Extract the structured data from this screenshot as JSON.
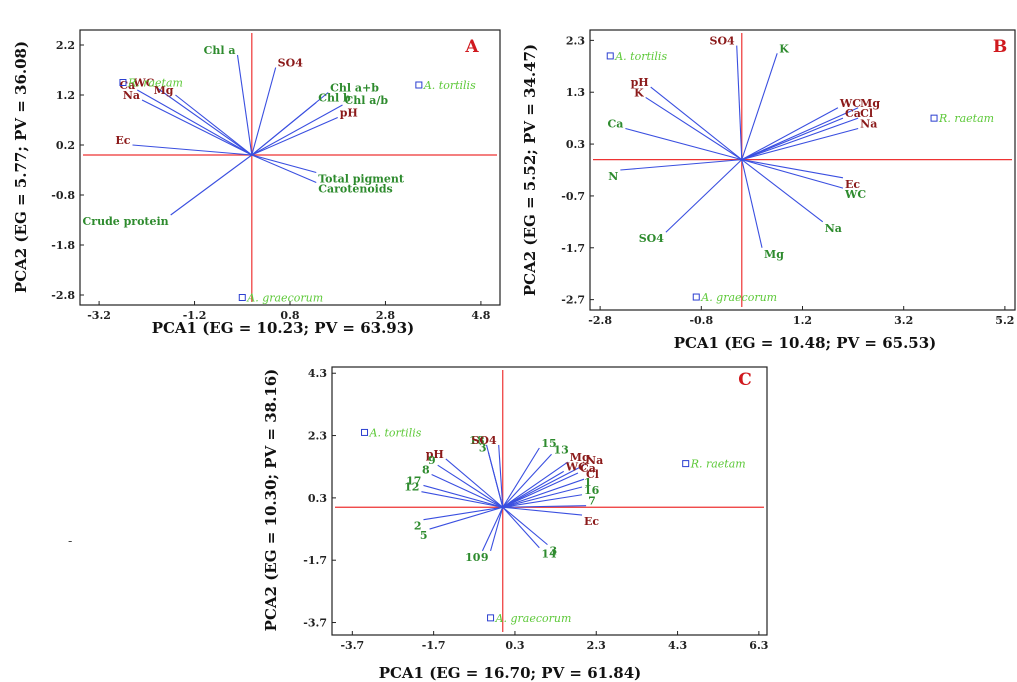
{
  "chart_data": [
    {
      "type": "scatter",
      "panel": "A",
      "xlabel": "PCA1 (EG = 10.23; PV = 63.93)",
      "ylabel": "PCA2 (EG = 5.77; PV = 36.08)",
      "xlim": [
        -3.6,
        5.2
      ],
      "ylim": [
        -3.0,
        2.5
      ],
      "xticks": [
        -3.2,
        -1.2,
        0.8,
        2.8,
        4.8
      ],
      "yticks": [
        2.2,
        1.2,
        0.2,
        -0.8,
        -1.8,
        -2.8
      ],
      "grid": false,
      "sites": [
        {
          "name": "R. raetam",
          "x": -2.7,
          "y": 1.45
        },
        {
          "name": "A. tortilis",
          "x": 3.5,
          "y": 1.4
        },
        {
          "name": "A. graecorum",
          "x": -0.2,
          "y": -2.85
        }
      ],
      "vectors": [
        {
          "label": "Chl a",
          "x": -0.3,
          "y": 2.0,
          "color": "#2e8b2e"
        },
        {
          "label": "SO4",
          "x": 0.5,
          "y": 1.75,
          "color": "#8b1a1a"
        },
        {
          "label": "Chl a+b",
          "x": 1.6,
          "y": 1.25,
          "color": "#2e8b2e"
        },
        {
          "label": "Chl b",
          "x": 1.35,
          "y": 1.05,
          "color": "#2e8b2e"
        },
        {
          "label": "Chl a/b",
          "x": 1.9,
          "y": 1.0,
          "color": "#2e8b2e"
        },
        {
          "label": "pH",
          "x": 1.8,
          "y": 0.75,
          "color": "#8b1a1a"
        },
        {
          "label": "Ca",
          "x": -2.4,
          "y": 1.3,
          "color": "#8b1a1a"
        },
        {
          "label": "WC",
          "x": -2.0,
          "y": 1.35,
          "color": "#8b1a1a"
        },
        {
          "label": "Mg",
          "x": -1.6,
          "y": 1.2,
          "color": "#8b1a1a"
        },
        {
          "label": "Na",
          "x": -2.3,
          "y": 1.1,
          "color": "#8b1a1a"
        },
        {
          "label": "Ec",
          "x": -2.5,
          "y": 0.2,
          "color": "#8b1a1a"
        },
        {
          "label": "Total pigment",
          "x": 1.35,
          "y": -0.35,
          "color": "#2e8b2e"
        },
        {
          "label": "Carotenoids",
          "x": 1.35,
          "y": -0.55,
          "color": "#2e8b2e"
        },
        {
          "label": "Crude protein",
          "x": -1.7,
          "y": -1.2,
          "color": "#2e8b2e"
        }
      ]
    },
    {
      "type": "scatter",
      "panel": "B",
      "xlabel": "PCA1 (EG = 10.48; PV = 65.53)",
      "ylabel": "PCA2 (EG = 5.52; PV = 34.47)",
      "xlim": [
        -3.0,
        5.4
      ],
      "ylim": [
        -2.9,
        2.5
      ],
      "xticks": [
        -2.8,
        -0.8,
        1.2,
        3.2,
        5.2
      ],
      "yticks": [
        2.3,
        1.3,
        0.3,
        -0.7,
        -1.7,
        -2.7
      ],
      "grid": false,
      "sites": [
        {
          "name": "A. tortilis",
          "x": -2.6,
          "y": 2.0
        },
        {
          "name": "R. raetam",
          "x": 3.8,
          "y": 0.8
        },
        {
          "name": "A. graecorum",
          "x": -0.9,
          "y": -2.65
        }
      ],
      "vectors": [
        {
          "label": "SO4",
          "x": -0.1,
          "y": 2.2,
          "color": "#8b1a1a"
        },
        {
          "label": "K",
          "x": 0.7,
          "y": 2.05,
          "color": "#2e8b2e"
        },
        {
          "label": "pH",
          "x": -1.8,
          "y": 1.4,
          "color": "#8b1a1a"
        },
        {
          "label": "K",
          "x": -1.9,
          "y": 1.2,
          "color": "#8b1a1a"
        },
        {
          "label": "WC",
          "x": 1.9,
          "y": 1.0,
          "color": "#8b1a1a"
        },
        {
          "label": "Mg",
          "x": 2.3,
          "y": 1.0,
          "color": "#8b1a1a"
        },
        {
          "label": "Ca",
          "x": 2.0,
          "y": 0.8,
          "color": "#8b1a1a"
        },
        {
          "label": "Cl",
          "x": 2.3,
          "y": 0.8,
          "color": "#8b1a1a"
        },
        {
          "label": "Na",
          "x": 2.3,
          "y": 0.6,
          "color": "#8b1a1a"
        },
        {
          "label": "Ca",
          "x": -2.3,
          "y": 0.6,
          "color": "#2e8b2e"
        },
        {
          "label": "N",
          "x": -2.4,
          "y": -0.2,
          "color": "#2e8b2e"
        },
        {
          "label": "Ec",
          "x": 2.0,
          "y": -0.35,
          "color": "#8b1a1a"
        },
        {
          "label": "WC",
          "x": 2.0,
          "y": -0.55,
          "color": "#2e8b2e"
        },
        {
          "label": "Na",
          "x": 1.6,
          "y": -1.2,
          "color": "#2e8b2e"
        },
        {
          "label": "SO4",
          "x": -1.5,
          "y": -1.4,
          "color": "#2e8b2e"
        },
        {
          "label": "Mg",
          "x": 0.4,
          "y": -1.7,
          "color": "#2e8b2e"
        }
      ]
    },
    {
      "type": "scatter",
      "panel": "C",
      "xlabel": "PCA1 (EG = 16.70; PV = 61.84)",
      "ylabel": "PCA2 (EG = 10.30; PV = 38.16)",
      "xlim": [
        -4.2,
        6.5
      ],
      "ylim": [
        -4.1,
        4.5
      ],
      "xticks": [
        -3.7,
        -1.7,
        0.3,
        2.3,
        4.3,
        6.3
      ],
      "yticks": [
        4.3,
        2.3,
        0.3,
        -1.7,
        -3.7
      ],
      "grid": false,
      "sites": [
        {
          "name": "A. tortilis",
          "x": -3.4,
          "y": 2.4
        },
        {
          "name": "R. raetam",
          "x": 4.5,
          "y": 1.4
        },
        {
          "name": "A. graecorum",
          "x": -0.3,
          "y": -3.55
        }
      ],
      "vectors": [
        {
          "label": "18",
          "x": -0.4,
          "y": 2.0,
          "color": "#2e8b2e"
        },
        {
          "label": "SO4",
          "x": -0.1,
          "y": 2.0,
          "color": "#8b1a1a"
        },
        {
          "label": "3",
          "x": -0.35,
          "y": 1.75,
          "color": "#2e8b2e"
        },
        {
          "label": "pH",
          "x": -1.4,
          "y": 1.55,
          "color": "#8b1a1a"
        },
        {
          "label": "9",
          "x": -1.6,
          "y": 1.35,
          "color": "#2e8b2e"
        },
        {
          "label": "8",
          "x": -1.75,
          "y": 1.05,
          "color": "#2e8b2e"
        },
        {
          "label": "17",
          "x": -1.95,
          "y": 0.7,
          "color": "#2e8b2e"
        },
        {
          "label": "12",
          "x": -2.0,
          "y": 0.5,
          "color": "#2e8b2e"
        },
        {
          "label": "2",
          "x": -1.95,
          "y": -0.4,
          "color": "#2e8b2e"
        },
        {
          "label": "5",
          "x": -1.8,
          "y": -0.7,
          "color": "#2e8b2e"
        },
        {
          "label": "10",
          "x": -0.5,
          "y": -1.4,
          "color": "#2e8b2e"
        },
        {
          "label": "9",
          "x": -0.3,
          "y": -1.4,
          "color": "#2e8b2e"
        },
        {
          "label": "14",
          "x": 0.9,
          "y": -1.3,
          "color": "#2e8b2e"
        },
        {
          "label": "3",
          "x": 1.1,
          "y": -1.2,
          "color": "#2e8b2e"
        },
        {
          "label": "15",
          "x": 0.9,
          "y": 1.9,
          "color": "#2e8b2e"
        },
        {
          "label": "13",
          "x": 1.2,
          "y": 1.7,
          "color": "#2e8b2e"
        },
        {
          "label": "Mg",
          "x": 1.6,
          "y": 1.45,
          "color": "#8b1a1a"
        },
        {
          "label": "Na",
          "x": 2.0,
          "y": 1.35,
          "color": "#8b1a1a"
        },
        {
          "label": "WC",
          "x": 1.5,
          "y": 1.15,
          "color": "#8b1a1a"
        },
        {
          "label": "Ca",
          "x": 1.85,
          "y": 1.1,
          "color": "#8b1a1a"
        },
        {
          "label": "Cl",
          "x": 2.0,
          "y": 0.9,
          "color": "#8b1a1a"
        },
        {
          "label": "1",
          "x": 1.95,
          "y": 0.65,
          "color": "#2e8b2e"
        },
        {
          "label": "16",
          "x": 1.95,
          "y": 0.4,
          "color": "#2e8b2e"
        },
        {
          "label": "7",
          "x": 2.05,
          "y": 0.05,
          "color": "#2e8b2e"
        },
        {
          "label": "Ec",
          "x": 1.95,
          "y": -0.25,
          "color": "#8b1a1a"
        }
      ]
    }
  ],
  "decor": {
    "dash": "-"
  }
}
